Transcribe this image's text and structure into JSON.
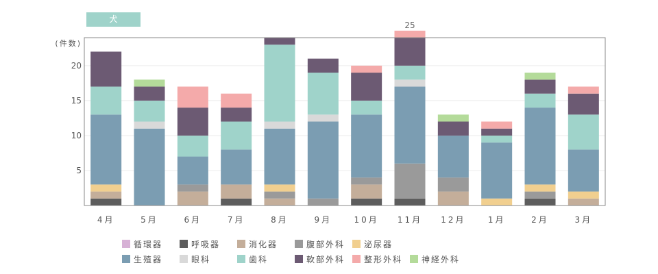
{
  "tag": {
    "label": "犬",
    "color": "#9fd3ca"
  },
  "chart_data": {
    "type": "bar",
    "stacked": true,
    "ylabel": "(件数)",
    "ylim": [
      0,
      24
    ],
    "yticks": [
      5,
      10,
      15,
      20
    ],
    "categories": [
      "4月",
      "5月",
      "6月",
      "7月",
      "8月",
      "9月",
      "10月",
      "11月",
      "12月",
      "1月",
      "2月",
      "3月"
    ],
    "series": [
      {
        "name": "循環器",
        "color": "#d7b1d6",
        "values": [
          0,
          0,
          0,
          0,
          0,
          0,
          0,
          0,
          0,
          0,
          0,
          0
        ]
      },
      {
        "name": "呼吸器",
        "color": "#5d5d5d",
        "values": [
          1,
          0,
          0,
          1,
          0,
          0,
          1,
          1,
          0,
          0,
          1,
          0
        ]
      },
      {
        "name": "消化器",
        "color": "#c4ae9a",
        "values": [
          1,
          0,
          2,
          2,
          1,
          0,
          2,
          0,
          2,
          0,
          0,
          1
        ]
      },
      {
        "name": "腹部外科",
        "color": "#9a9a9a",
        "values": [
          0,
          0,
          1,
          0,
          1,
          1,
          1,
          5,
          2,
          0,
          1,
          0
        ]
      },
      {
        "name": "泌尿器",
        "color": "#f1cf8f",
        "values": [
          1,
          0,
          0,
          0,
          1,
          0,
          0,
          0,
          0,
          1,
          1,
          1
        ]
      },
      {
        "name": "生殖器",
        "color": "#7b9db2",
        "values": [
          10,
          11,
          4,
          5,
          8,
          11,
          9,
          11,
          6,
          8,
          11,
          6
        ]
      },
      {
        "name": "眼科",
        "color": "#d9d9d9",
        "values": [
          0,
          1,
          0,
          0,
          1,
          1,
          0,
          1,
          0,
          0,
          0,
          0
        ]
      },
      {
        "name": "歯科",
        "color": "#9fd3ca",
        "values": [
          4,
          3,
          3,
          4,
          11,
          6,
          2,
          2,
          0,
          1,
          2,
          5
        ]
      },
      {
        "name": "軟部外科",
        "color": "#6c5a73",
        "values": [
          5,
          2,
          4,
          2,
          1,
          2,
          4,
          4,
          2,
          1,
          2,
          3
        ]
      },
      {
        "name": "整形外科",
        "color": "#f4aaaa",
        "values": [
          0,
          0,
          3,
          2,
          0,
          0,
          1,
          1,
          0,
          1,
          0,
          1
        ]
      },
      {
        "name": "神経外科",
        "color": "#b4db9a",
        "values": [
          0,
          1,
          0,
          0,
          0,
          0,
          0,
          0,
          1,
          0,
          1,
          0
        ]
      }
    ],
    "annotations": [
      {
        "category": "11月",
        "label": "25"
      }
    ]
  }
}
